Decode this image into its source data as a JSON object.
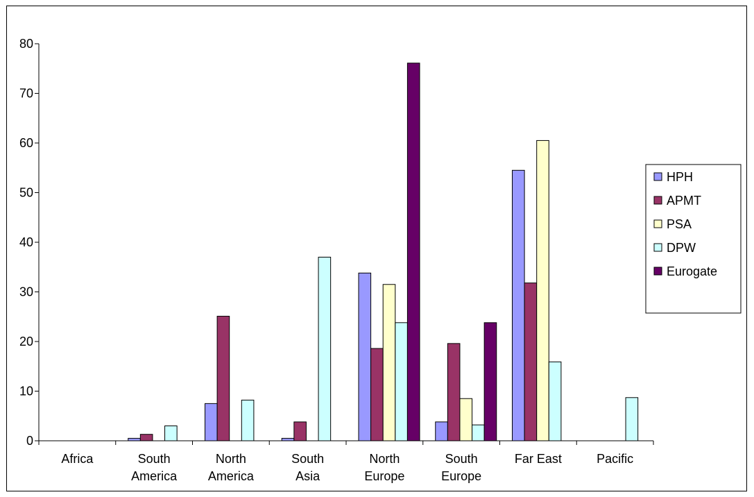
{
  "chart_data": {
    "type": "bar",
    "title": "",
    "xlabel": "",
    "ylabel": "",
    "ylim": [
      0,
      80
    ],
    "yticks": [
      0,
      10,
      20,
      30,
      40,
      50,
      60,
      70,
      80
    ],
    "grid": false,
    "legend_position": "right",
    "categories": [
      [
        "Africa"
      ],
      [
        "South",
        "America"
      ],
      [
        "North",
        "America"
      ],
      [
        "South",
        "Asia"
      ],
      [
        "North",
        "Europe"
      ],
      [
        "South",
        "Europe"
      ],
      [
        "Far East"
      ],
      [
        "Pacific"
      ]
    ],
    "series": [
      {
        "name": "HPH",
        "color": "#9999ff",
        "values": [
          0,
          0.5,
          7.5,
          0.5,
          33.8,
          3.8,
          54.5,
          0
        ]
      },
      {
        "name": "APMT",
        "color": "#993366",
        "values": [
          0,
          1.3,
          25.1,
          3.8,
          18.6,
          19.6,
          31.8,
          0
        ]
      },
      {
        "name": "PSA",
        "color": "#ffffcc",
        "values": [
          0,
          0,
          0,
          0,
          31.5,
          8.5,
          60.5,
          0
        ]
      },
      {
        "name": "DPW",
        "color": "#ccffff",
        "values": [
          0,
          3.0,
          8.2,
          37.0,
          23.8,
          3.2,
          15.9,
          8.7
        ]
      },
      {
        "name": "Eurogate",
        "color": "#660066",
        "values": [
          0,
          0,
          0,
          0,
          76.1,
          23.8,
          0,
          0
        ]
      }
    ]
  }
}
